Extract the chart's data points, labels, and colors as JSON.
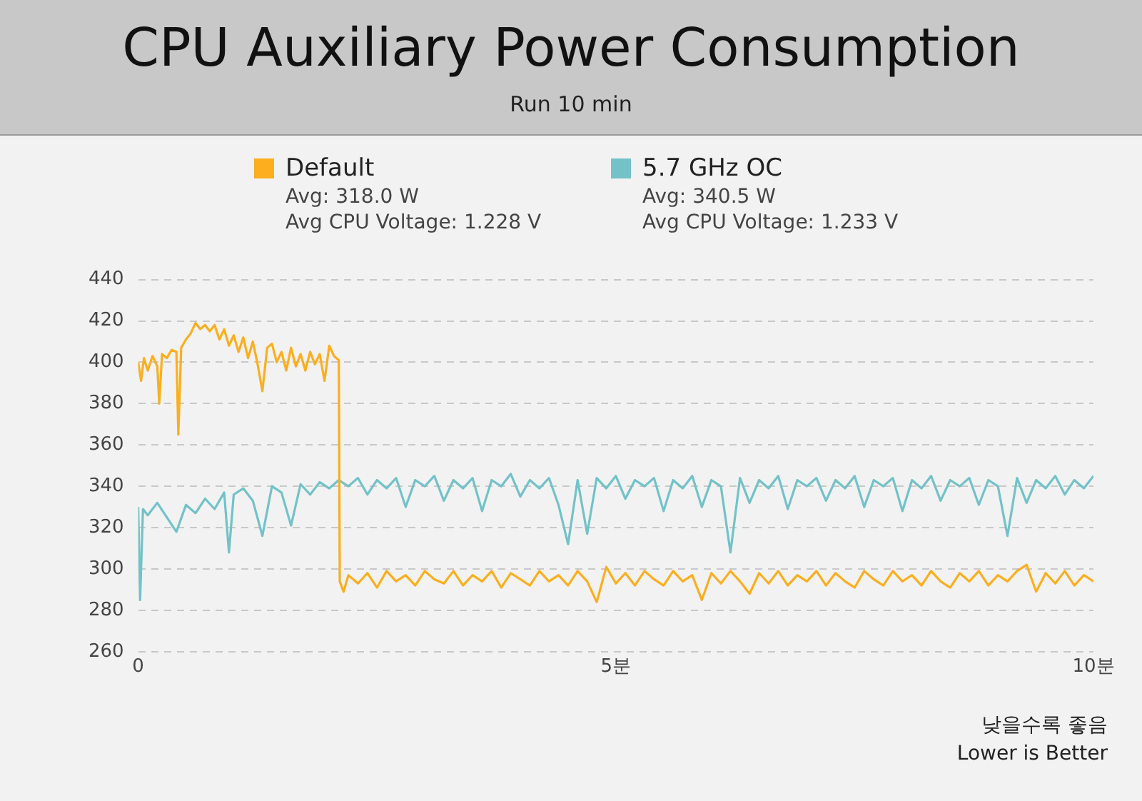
{
  "chart_data": {
    "type": "line",
    "title": "CPU Auxiliary Power Consumption",
    "subtitle": "Run 10 min",
    "xlim": [
      0,
      10
    ],
    "xticks": [
      0,
      {
        "value": 5,
        "label": "5분"
      },
      {
        "value": 10,
        "label": "10분"
      }
    ],
    "ylim": [
      260,
      440
    ],
    "yticks": [
      260,
      280,
      300,
      320,
      340,
      360,
      380,
      400,
      420,
      440
    ],
    "grid": "y",
    "legend": "top",
    "marker": "none",
    "line_style": "solid",
    "annotations": [
      "Avg: 318.0 W",
      "Avg CPU Voltage: 1.228 V",
      "Avg: 340.5 W",
      "Avg CPU Voltage: 1.233 V",
      "낮을수록 좋음",
      "Lower is Better"
    ],
    "series": [
      {
        "name": "Default",
        "color": "#fcae1e",
        "x": [
          0,
          0.03,
          0.06,
          0.1,
          0.15,
          0.2,
          0.22,
          0.25,
          0.3,
          0.35,
          0.4,
          0.42,
          0.45,
          0.5,
          0.55,
          0.6,
          0.65,
          0.7,
          0.75,
          0.8,
          0.85,
          0.9,
          0.95,
          1.0,
          1.05,
          1.1,
          1.15,
          1.2,
          1.25,
          1.3,
          1.35,
          1.4,
          1.45,
          1.5,
          1.55,
          1.6,
          1.65,
          1.7,
          1.75,
          1.8,
          1.85,
          1.9,
          1.95,
          2.0,
          2.05,
          2.1,
          2.11,
          2.15,
          2.2,
          2.3,
          2.4,
          2.5,
          2.6,
          2.7,
          2.8,
          2.9,
          3.0,
          3.1,
          3.2,
          3.3,
          3.4,
          3.5,
          3.6,
          3.7,
          3.8,
          3.9,
          4.0,
          4.1,
          4.2,
          4.3,
          4.4,
          4.5,
          4.6,
          4.7,
          4.8,
          4.9,
          5.0,
          5.1,
          5.2,
          5.3,
          5.4,
          5.5,
          5.6,
          5.7,
          5.8,
          5.9,
          6.0,
          6.1,
          6.2,
          6.3,
          6.4,
          6.5,
          6.6,
          6.7,
          6.8,
          6.9,
          7.0,
          7.1,
          7.2,
          7.3,
          7.4,
          7.5,
          7.6,
          7.7,
          7.8,
          7.9,
          8.0,
          8.1,
          8.2,
          8.3,
          8.4,
          8.5,
          8.6,
          8.7,
          8.8,
          8.9,
          9.0,
          9.1,
          9.2,
          9.3,
          9.4,
          9.5,
          9.6,
          9.7,
          9.8,
          9.9,
          10.0
        ],
        "values": [
          400,
          391,
          402,
          396,
          403,
          398,
          380,
          404,
          402,
          406,
          405,
          365,
          407,
          411,
          414,
          419,
          416,
          418,
          415,
          418,
          411,
          416,
          408,
          413,
          405,
          412,
          402,
          410,
          399,
          386,
          407,
          409,
          400,
          405,
          396,
          407,
          398,
          404,
          396,
          405,
          399,
          404,
          391,
          408,
          403,
          401,
          294,
          289,
          297,
          293,
          298,
          291,
          299,
          294,
          297,
          292,
          299,
          295,
          293,
          299,
          292,
          297,
          294,
          299,
          291,
          298,
          295,
          292,
          299,
          294,
          297,
          292,
          299,
          294,
          284,
          301,
          293,
          298,
          292,
          299,
          295,
          292,
          299,
          294,
          297,
          285,
          298,
          293,
          299,
          294,
          288,
          298,
          293,
          299,
          292,
          297,
          294,
          299,
          292,
          298,
          294,
          291,
          299,
          295,
          292,
          299,
          294,
          297,
          292,
          299,
          294,
          291,
          298,
          294,
          299,
          292,
          297,
          294,
          299,
          302,
          289,
          298,
          293,
          299,
          292,
          297,
          294
        ]
      },
      {
        "name": "5.7 GHz OC",
        "color": "#72c2c8",
        "x": [
          0,
          0.02,
          0.05,
          0.1,
          0.2,
          0.3,
          0.4,
          0.5,
          0.6,
          0.7,
          0.8,
          0.9,
          0.95,
          1.0,
          1.1,
          1.2,
          1.3,
          1.4,
          1.5,
          1.6,
          1.7,
          1.8,
          1.9,
          2.0,
          2.1,
          2.2,
          2.3,
          2.4,
          2.5,
          2.6,
          2.7,
          2.8,
          2.9,
          3.0,
          3.1,
          3.2,
          3.3,
          3.4,
          3.5,
          3.6,
          3.7,
          3.8,
          3.9,
          4.0,
          4.1,
          4.2,
          4.3,
          4.4,
          4.5,
          4.6,
          4.7,
          4.8,
          4.9,
          5.0,
          5.1,
          5.2,
          5.3,
          5.4,
          5.5,
          5.6,
          5.7,
          5.8,
          5.9,
          6.0,
          6.1,
          6.2,
          6.3,
          6.4,
          6.5,
          6.6,
          6.7,
          6.8,
          6.9,
          7.0,
          7.1,
          7.2,
          7.3,
          7.4,
          7.5,
          7.6,
          7.7,
          7.8,
          7.9,
          8.0,
          8.1,
          8.2,
          8.3,
          8.4,
          8.5,
          8.6,
          8.7,
          8.8,
          8.9,
          9.0,
          9.1,
          9.2,
          9.3,
          9.4,
          9.5,
          9.6,
          9.7,
          9.8,
          9.9,
          10.0
        ],
        "values": [
          330,
          285,
          329,
          326,
          332,
          325,
          318,
          331,
          327,
          334,
          329,
          337,
          308,
          336,
          339,
          333,
          316,
          340,
          337,
          321,
          341,
          336,
          342,
          339,
          343,
          340,
          344,
          336,
          343,
          339,
          344,
          330,
          343,
          340,
          345,
          333,
          343,
          339,
          344,
          328,
          343,
          340,
          346,
          335,
          343,
          339,
          344,
          331,
          312,
          343,
          317,
          344,
          339,
          345,
          334,
          343,
          340,
          344,
          328,
          343,
          339,
          345,
          330,
          343,
          340,
          308,
          344,
          332,
          343,
          339,
          345,
          329,
          343,
          340,
          344,
          333,
          343,
          339,
          345,
          330,
          343,
          340,
          344,
          328,
          343,
          339,
          345,
          333,
          343,
          340,
          344,
          331,
          343,
          340,
          316,
          344,
          332,
          343,
          339,
          345,
          336,
          343,
          339,
          345
        ]
      }
    ]
  }
}
